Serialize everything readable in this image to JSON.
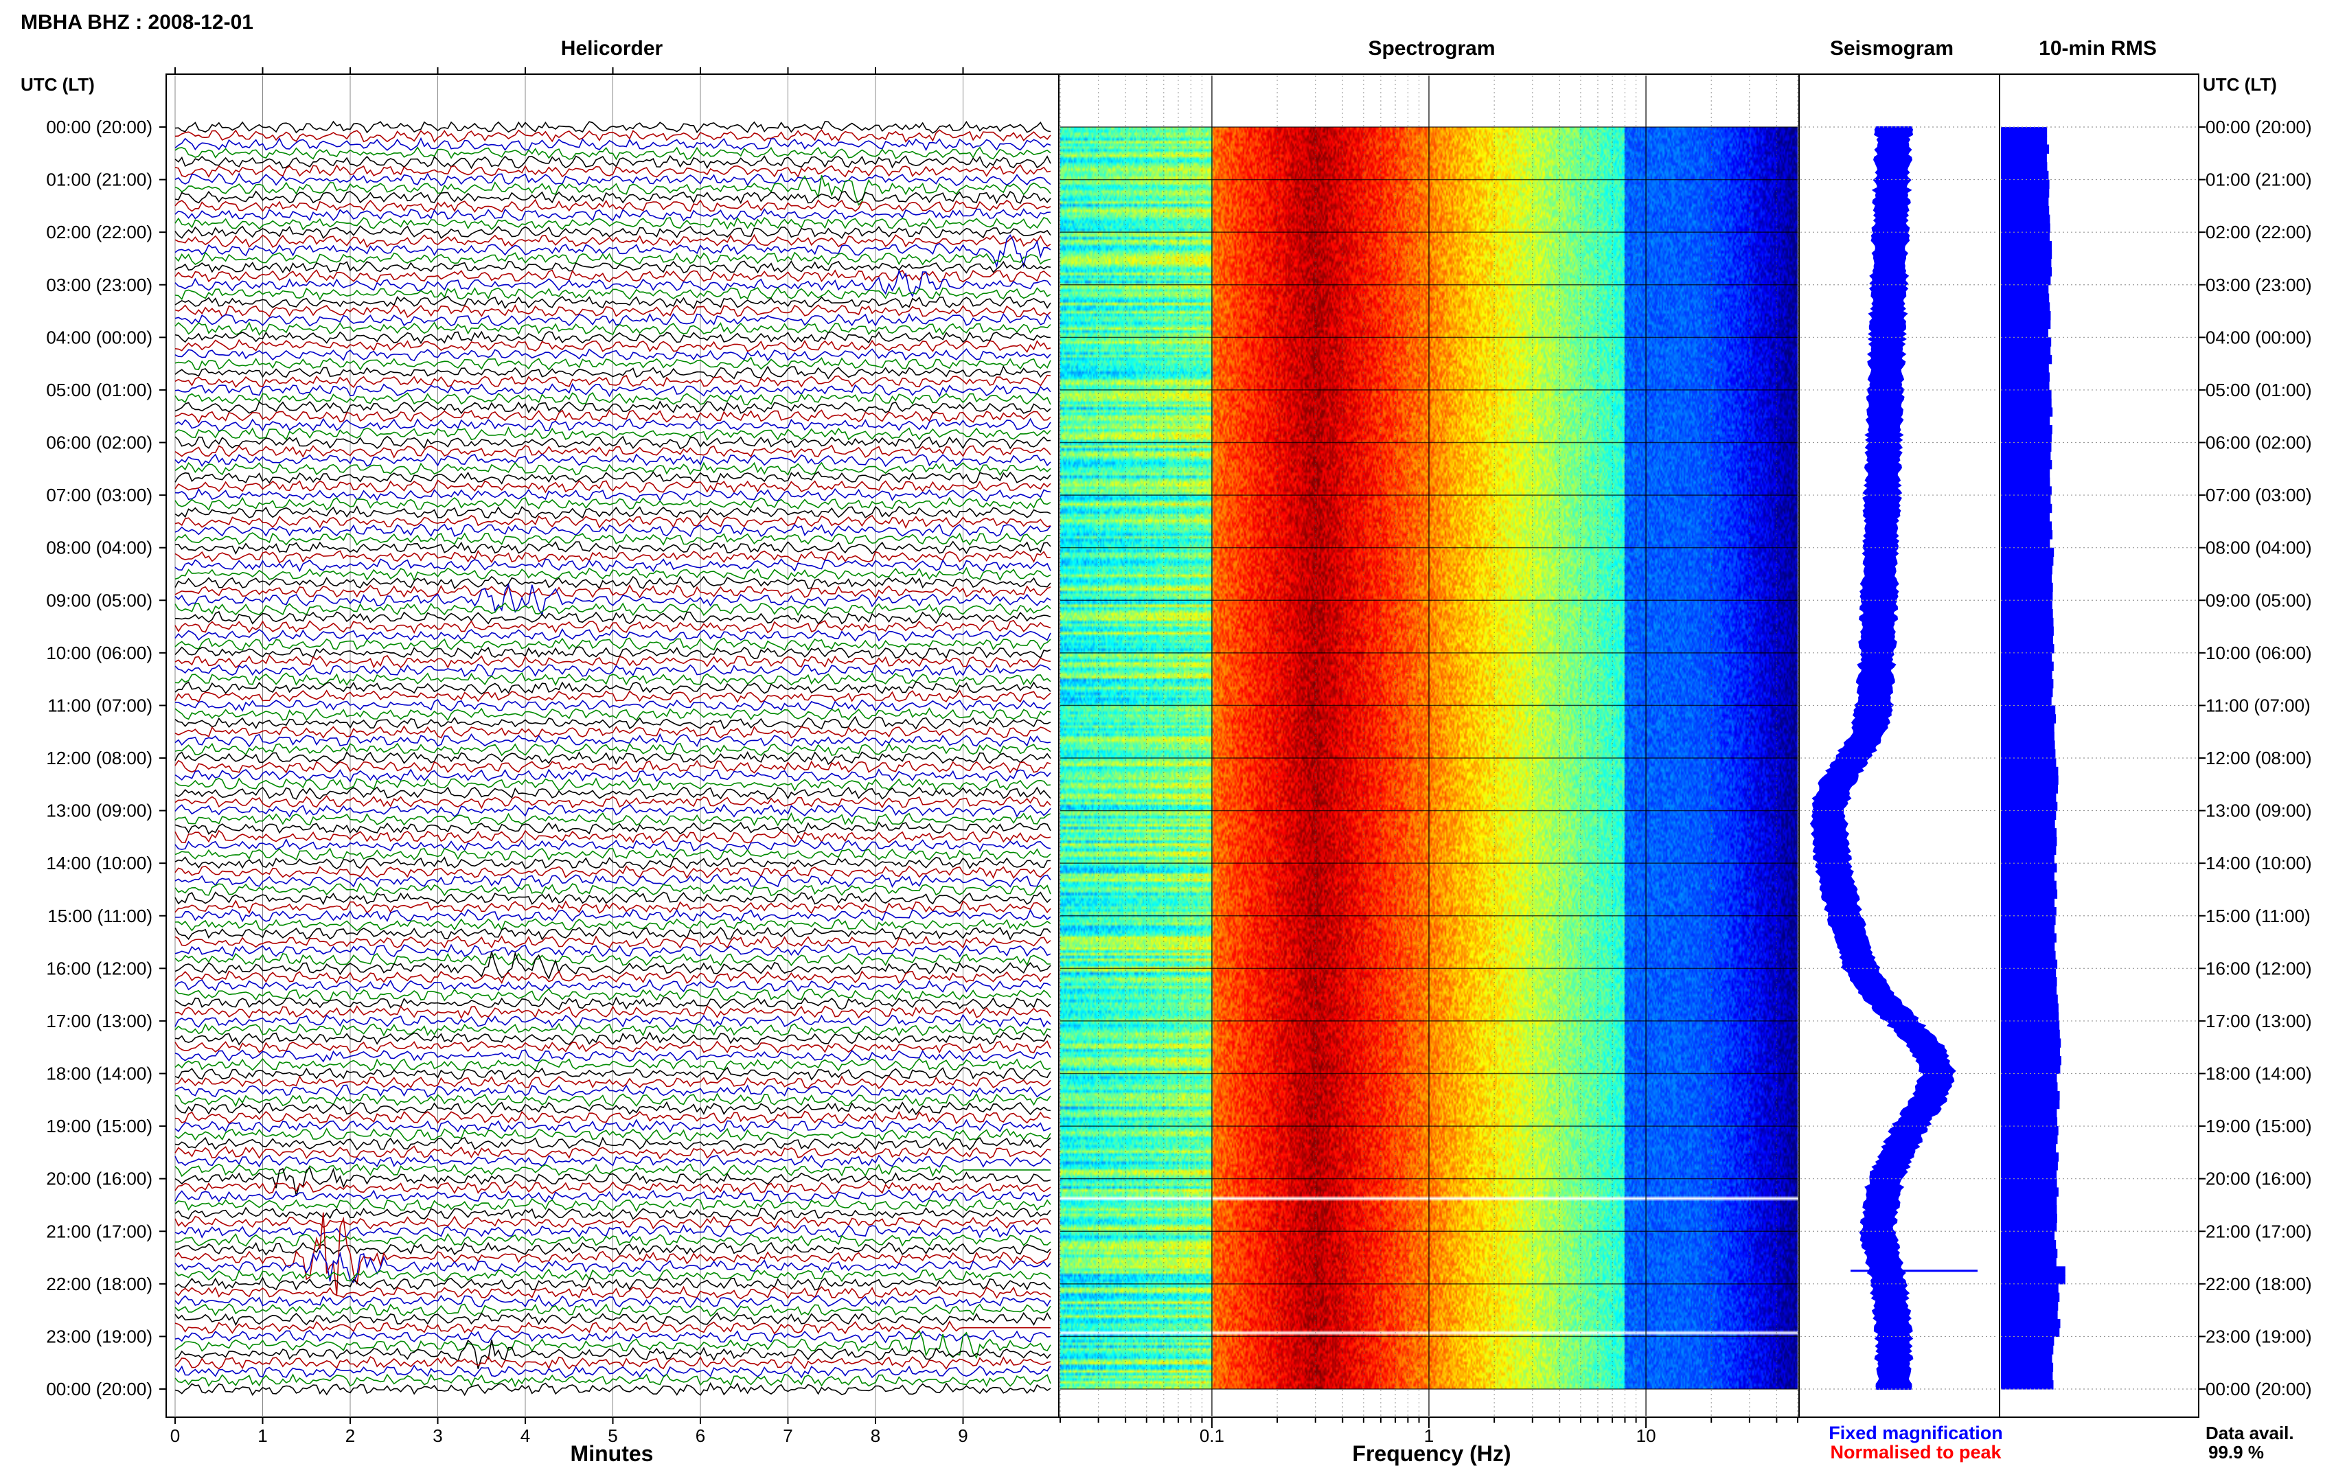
{
  "header": {
    "station_title": "MBHA BHZ : 2008-12-01",
    "utc_lt_label_left": "UTC (LT)",
    "utc_lt_label_right": "UTC (LT)"
  },
  "panels": {
    "helicorder": {
      "title": "Helicorder",
      "xlabel": "Minutes",
      "ticks": [
        "0",
        "1",
        "2",
        "3",
        "4",
        "5",
        "6",
        "7",
        "8",
        "9"
      ]
    },
    "spectrogram": {
      "title": "Spectrogram",
      "xlabel": "Frequency (Hz)",
      "ticks": [
        "0.1",
        "1",
        "10"
      ]
    },
    "seismogram": {
      "title": "Seismogram"
    },
    "rms": {
      "title": "10-min RMS"
    }
  },
  "time_labels": [
    "00:00 (20:00)",
    "01:00 (21:00)",
    "02:00 (22:00)",
    "03:00 (23:00)",
    "04:00 (00:00)",
    "05:00 (01:00)",
    "06:00 (02:00)",
    "07:00 (03:00)",
    "08:00 (04:00)",
    "09:00 (05:00)",
    "10:00 (06:00)",
    "11:00 (07:00)",
    "12:00 (08:00)",
    "13:00 (09:00)",
    "14:00 (10:00)",
    "15:00 (11:00)",
    "16:00 (12:00)",
    "17:00 (13:00)",
    "18:00 (14:00)",
    "19:00 (15:00)",
    "20:00 (16:00)",
    "21:00 (17:00)",
    "22:00 (18:00)",
    "23:00 (19:00)",
    "00:00 (20:00)"
  ],
  "legend": {
    "fixed": "Fixed magnification",
    "normalised": "Normalised to peak",
    "fixed_color": "#0000ff",
    "normalised_color": "#ff0000"
  },
  "data_availability": {
    "label": "Data avail.",
    "value": "99.9 %"
  },
  "colors": {
    "trace_cycle": [
      "#000000",
      "#b00000",
      "#0000c8",
      "#008a00"
    ],
    "rms_bar": "#0000ff",
    "seismogram_fill": "#0000ff"
  },
  "chart_data": [
    {
      "type": "line",
      "title": "Helicorder",
      "xlabel": "Minutes",
      "xlim": [
        0,
        10
      ],
      "rows_per_hour": 6,
      "hours": 24,
      "events": [
        {
          "hour": 1.2,
          "minute": 7.1
        },
        {
          "hour": 2.35,
          "minute": 9.3
        },
        {
          "hour": 3.0,
          "minute": 8.0
        },
        {
          "hour": 9.0,
          "minute": 3.5
        },
        {
          "hour": 16.0,
          "minute": 3.5
        },
        {
          "hour": 20.0,
          "minute": 1.1
        },
        {
          "hour": 21.5,
          "minute": 1.2
        },
        {
          "hour": 21.55,
          "minute": 1.5
        },
        {
          "hour": 23.2,
          "minute": 8.3
        },
        {
          "hour": 23.3,
          "minute": 3.2
        }
      ],
      "gaps": [
        {
          "hour": 19.8,
          "start_minute": 9.0,
          "end_minute": 10.0
        },
        {
          "hour": 22.9,
          "start_minute": 9.0,
          "end_minute": 10.0
        }
      ]
    },
    {
      "type": "heatmap",
      "title": "Spectrogram",
      "xlabel": "Frequency (Hz)",
      "xscale": "log",
      "xlim": [
        0.02,
        50
      ],
      "ylim_hours": [
        0,
        24
      ],
      "peak_frequency_hz": 0.3,
      "gaps_hours": [
        20.35,
        22.9
      ]
    },
    {
      "type": "area",
      "title": "Seismogram",
      "x_hours": [
        0,
        1,
        2,
        3,
        4,
        5,
        6,
        7,
        8,
        9,
        10,
        11,
        11.5,
        12,
        12.5,
        13,
        14,
        15,
        16,
        16.5,
        17,
        17.5,
        18,
        18.5,
        19,
        20,
        21,
        22,
        23,
        24
      ],
      "center": [
        0.45,
        0.44,
        0.43,
        0.42,
        0.41,
        0.4,
        0.39,
        0.38,
        0.37,
        0.36,
        0.35,
        0.33,
        0.3,
        0.2,
        0.1,
        0.05,
        0.08,
        0.15,
        0.25,
        0.35,
        0.5,
        0.65,
        0.72,
        0.66,
        0.55,
        0.4,
        0.35,
        0.42,
        0.45,
        0.45
      ],
      "halfwidth": [
        0.1,
        0.1,
        0.1,
        0.1,
        0.1,
        0.1,
        0.1,
        0.1,
        0.1,
        0.1,
        0.1,
        0.1,
        0.1,
        0.1,
        0.1,
        0.1,
        0.1,
        0.1,
        0.1,
        0.1,
        0.1,
        0.1,
        0.1,
        0.1,
        0.1,
        0.1,
        0.1,
        0.1,
        0.1,
        0.1
      ]
    },
    {
      "type": "bar",
      "title": "10-min RMS",
      "orientation": "horizontal",
      "hours_start": 0,
      "bin_minutes": 10,
      "values_hourly_mean": [
        0.6,
        0.62,
        0.63,
        0.62,
        0.63,
        0.64,
        0.63,
        0.64,
        0.66,
        0.66,
        0.66,
        0.68,
        0.72,
        0.7,
        0.7,
        0.7,
        0.72,
        0.75,
        0.73,
        0.72,
        0.72,
        0.7,
        0.74,
        0.67
      ],
      "spikes": [
        {
          "hour": 21.75,
          "value": 0.82
        }
      ]
    }
  ]
}
